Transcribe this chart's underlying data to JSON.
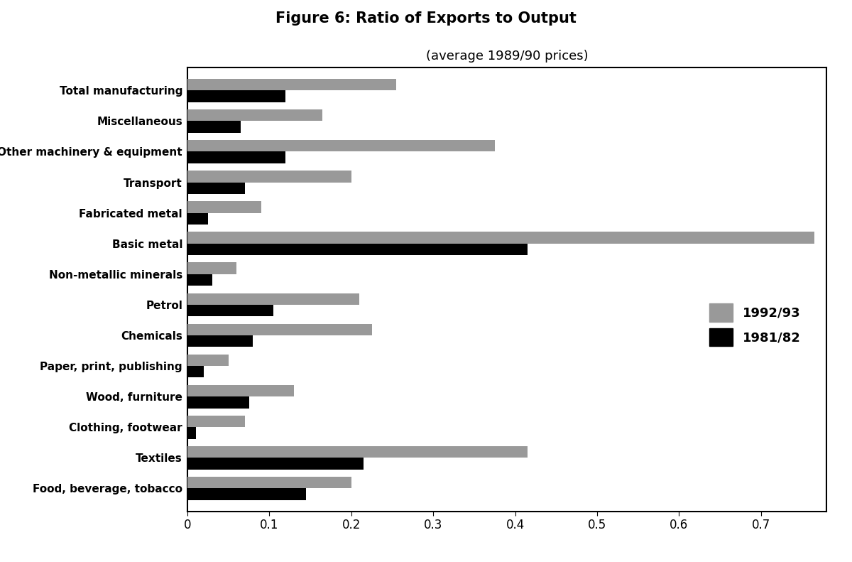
{
  "title": "Figure 6: Ratio of Exports to Output",
  "subtitle": "(average 1989/90 prices)",
  "categories": [
    "Food, beverage, tobacco",
    "Textiles",
    "Clothing, footwear",
    "Wood, furniture",
    "Paper, print, publishing",
    "Chemicals",
    "Petrol",
    "Non-metallic minerals",
    "Basic metal",
    "Fabricated metal",
    "Transport",
    "Other machinery & equipment",
    "Miscellaneous",
    "Total manufacturing"
  ],
  "values_1992": [
    0.2,
    0.415,
    0.07,
    0.13,
    0.05,
    0.225,
    0.21,
    0.06,
    0.765,
    0.09,
    0.2,
    0.375,
    0.165,
    0.255
  ],
  "values_1981": [
    0.145,
    0.215,
    0.01,
    0.075,
    0.02,
    0.08,
    0.105,
    0.03,
    0.415,
    0.025,
    0.07,
    0.12,
    0.065,
    0.12
  ],
  "color_1992": "#999999",
  "color_1981": "#000000",
  "label_1992": "1992/93",
  "label_1981": "1981/82",
  "xlim": [
    0,
    0.78
  ],
  "xticks": [
    0,
    0.1,
    0.2,
    0.3,
    0.4,
    0.5,
    0.6,
    0.7
  ],
  "xtick_labels": [
    "0",
    "0.1",
    "0.2",
    "0.3",
    "0.4",
    "0.5",
    "0.6",
    "0.7"
  ],
  "background_color": "#ffffff",
  "title_fontsize": 15,
  "subtitle_fontsize": 13,
  "tick_fontsize": 12,
  "label_fontsize": 11,
  "bar_height": 0.38
}
